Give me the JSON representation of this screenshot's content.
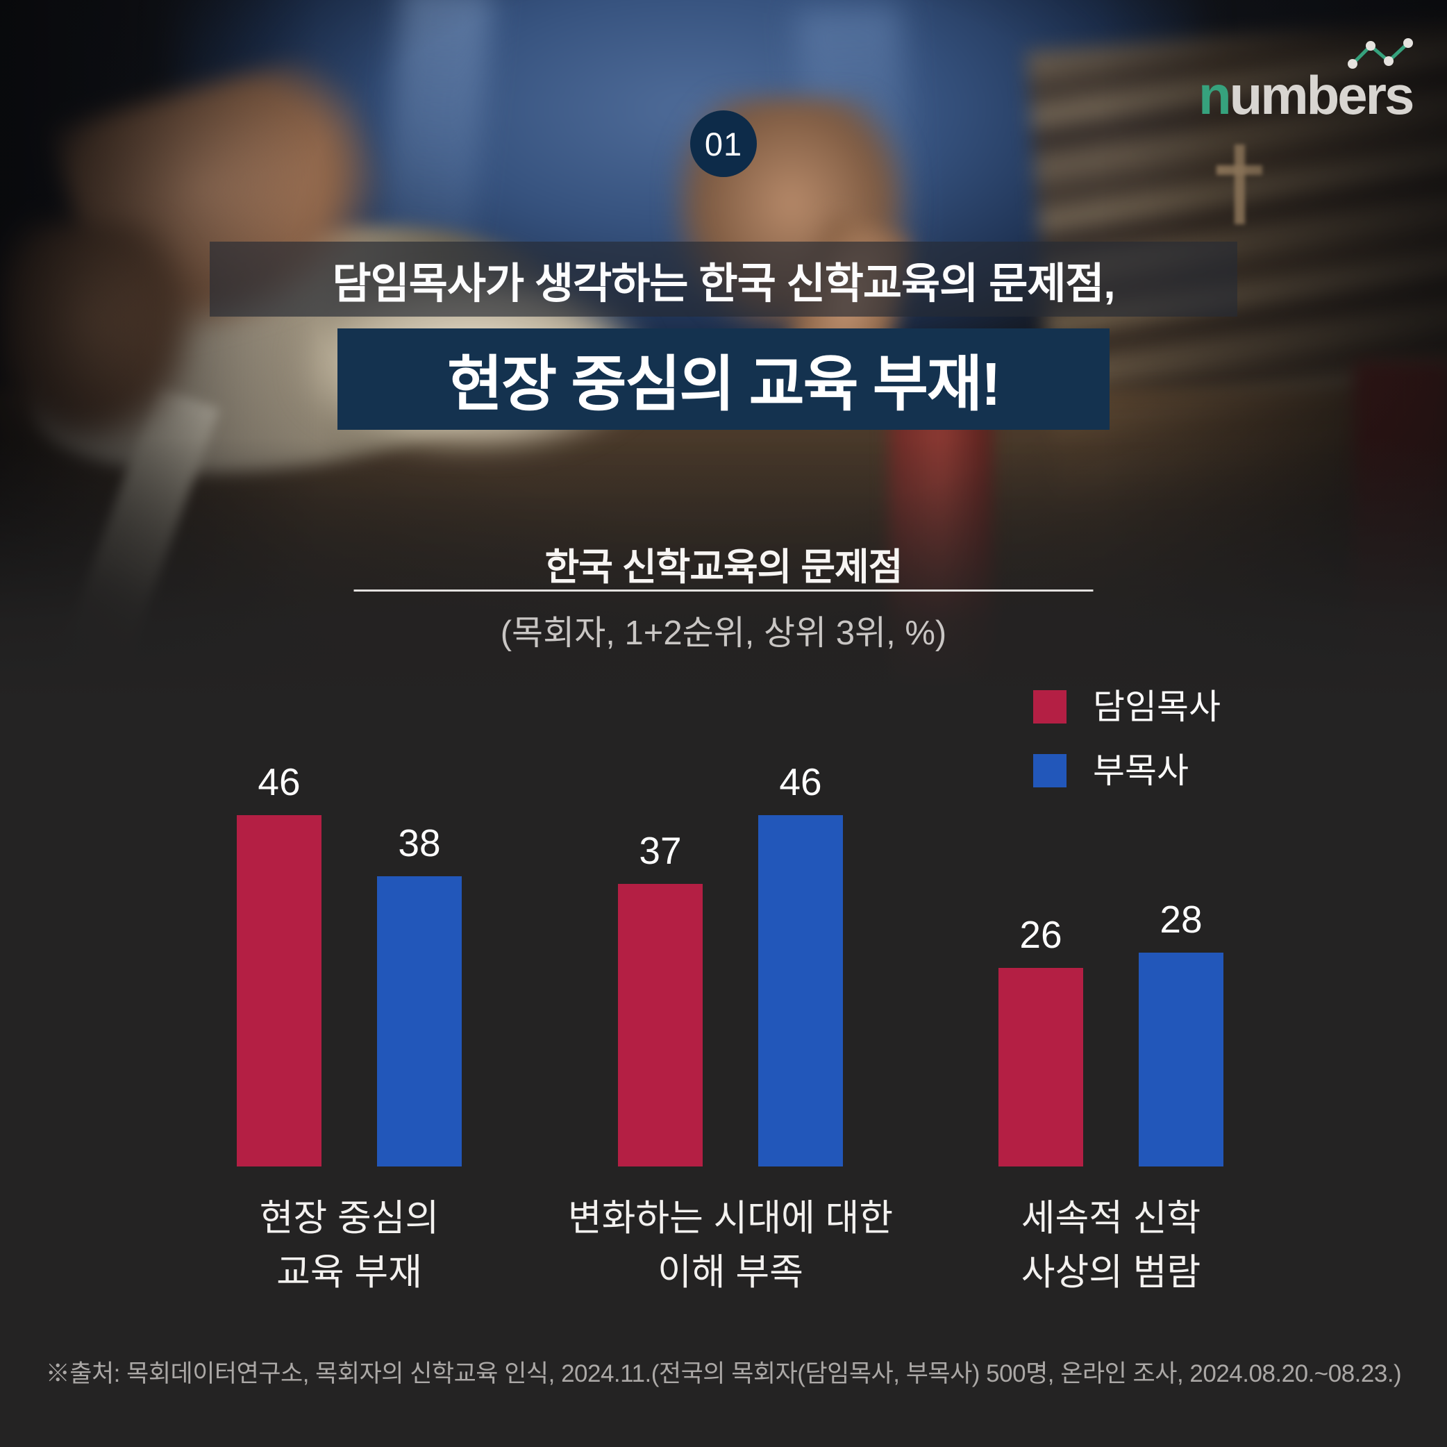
{
  "brand": {
    "logo_accent_letter": "n",
    "logo_rest": "umbers",
    "logo_color": "#d8d5d1",
    "accent_color": "#36a27d"
  },
  "badge": {
    "label": "01",
    "bg_color": "#0d2b49"
  },
  "header": {
    "line1": "담임목사가 생각하는 한국 신학교육의 문제점,",
    "line2": "현장 중심의 교육 부재!",
    "line2_bg_color": "#14324f"
  },
  "chart_data": {
    "type": "bar",
    "title": "한국 신학교육의 문제점",
    "subtitle": "(목회자, 1+2순위, 상위 3위, %)",
    "unit": "%",
    "categories": [
      [
        "현장 중심의",
        "교육 부재"
      ],
      [
        "변화하는 시대에 대한",
        "이해 부족"
      ],
      [
        "세속적 신학",
        "사상의 범람"
      ]
    ],
    "series": [
      {
        "name": "담임목사",
        "color": "#b41f44",
        "values": [
          46,
          37,
          26
        ]
      },
      {
        "name": "부목사",
        "color": "#2257ba",
        "values": [
          38,
          46,
          28
        ]
      }
    ],
    "value_labels": true,
    "grid": false,
    "legend_position": "top-right",
    "ylim": [
      0,
      50
    ]
  },
  "footer": {
    "source": "※출처: 목회데이터연구소, 목회자의 신학교육 인식, 2024.11.(전국의 목회자(담임목사, 부목사) 500명, 온라인 조사, 2024.08.20.~08.23.)"
  }
}
